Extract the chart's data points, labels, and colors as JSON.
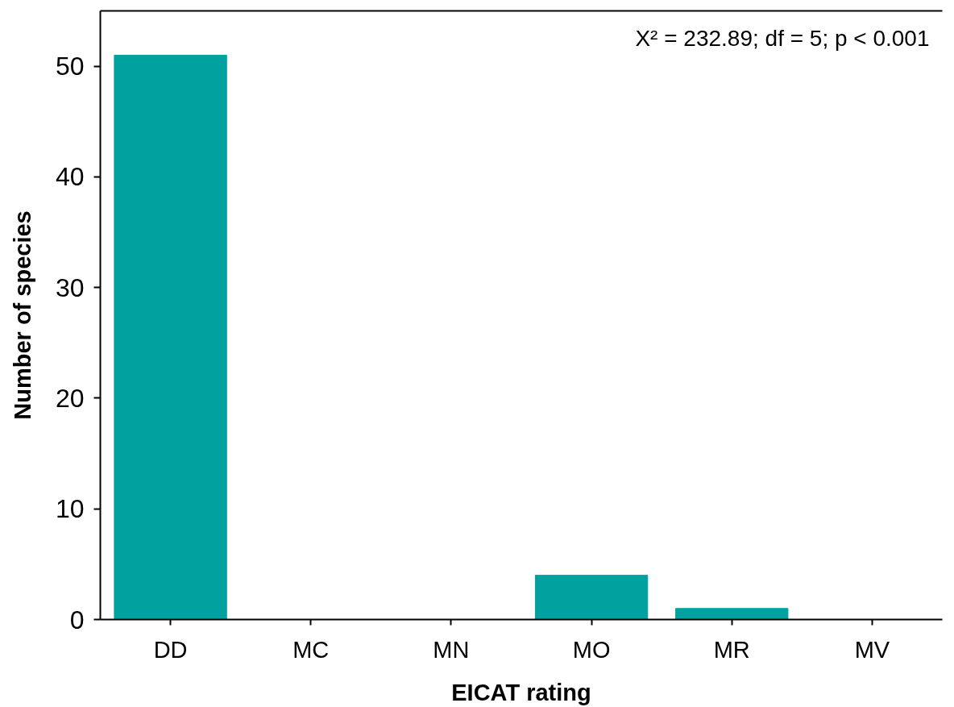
{
  "chart_data": {
    "type": "bar",
    "xlabel": "EICAT rating",
    "ylabel": "Number of species",
    "categories": [
      "DD",
      "MC",
      "MN",
      "MO",
      "MR",
      "MV"
    ],
    "values": [
      51,
      0,
      0,
      4,
      1,
      0
    ],
    "color": "#00a19f",
    "ylim": [
      0,
      55
    ],
    "yticks": [
      0,
      10,
      20,
      30,
      40,
      50
    ],
    "annotations": [
      "X² = 232.89; df = 5; p < 0.001"
    ]
  }
}
